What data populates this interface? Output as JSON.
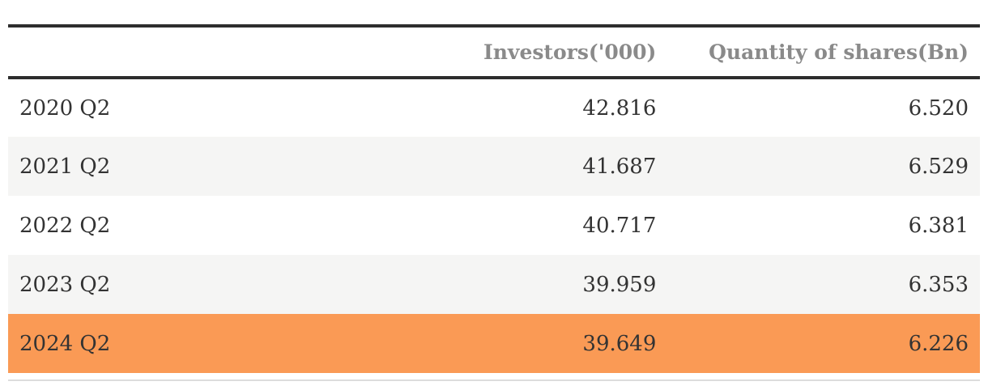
{
  "table": {
    "columns": [
      {
        "label": ""
      },
      {
        "label": "Investors('000)"
      },
      {
        "label": "Quantity of shares(Bn)"
      }
    ],
    "rows": [
      {
        "period": "2020 Q2",
        "investors": "42.816",
        "shares": "6.520",
        "highlight": false
      },
      {
        "period": "2021 Q2",
        "investors": "41.687",
        "shares": "6.529",
        "highlight": false
      },
      {
        "period": "2022 Q2",
        "investors": "40.717",
        "shares": "6.381",
        "highlight": false
      },
      {
        "period": "2023 Q2",
        "investors": "39.959",
        "shares": "6.353",
        "highlight": false
      },
      {
        "period": "2024 Q2",
        "investors": "39.649",
        "shares": "6.226",
        "highlight": true
      }
    ]
  },
  "colors": {
    "highlight_row": "#fa9a55",
    "zebra_row": "#f5f5f4",
    "rule_dark": "#2d2d2d",
    "rule_light": "#dcdcdc",
    "header_text": "#8a8a8a",
    "body_text": "#333333"
  },
  "chart_data": {
    "type": "table",
    "categories": [
      "2020 Q2",
      "2021 Q2",
      "2022 Q2",
      "2023 Q2",
      "2024 Q2"
    ],
    "series": [
      {
        "name": "Investors('000)",
        "values": [
          42.816,
          41.687,
          40.717,
          39.959,
          39.649
        ]
      },
      {
        "name": "Quantity of shares(Bn)",
        "values": [
          6.52,
          6.529,
          6.381,
          6.353,
          6.226
        ]
      }
    ],
    "highlighted_row": "2024 Q2",
    "title": "",
    "legend_position": "none",
    "grid": false
  }
}
